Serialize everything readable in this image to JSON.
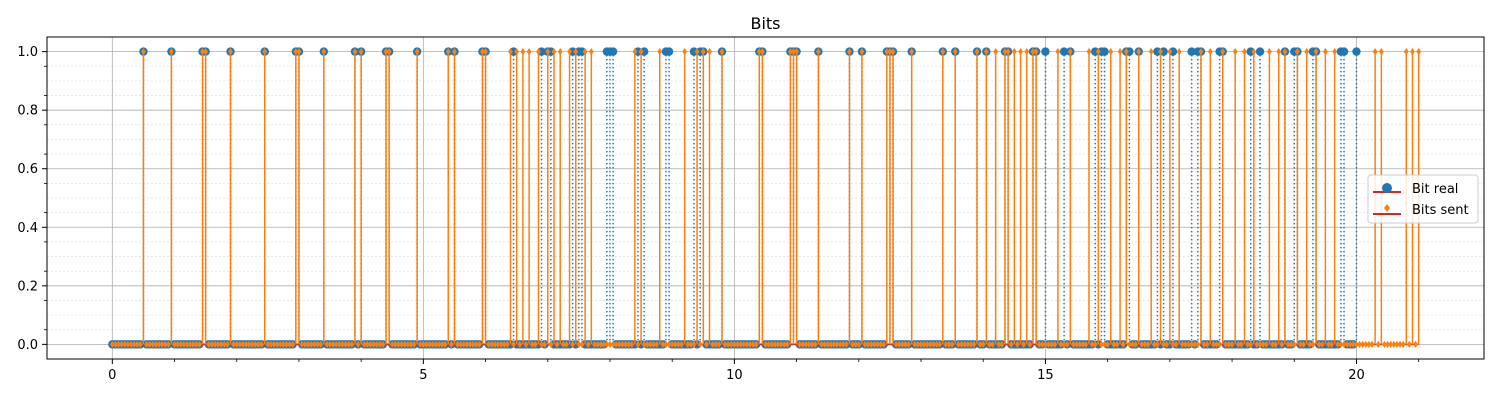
{
  "chart_data": {
    "type": "stem",
    "title": "Bits",
    "xlabel": "",
    "ylabel": "",
    "xlim": [
      -1.05,
      22.05
    ],
    "ylim": [
      -0.05,
      1.05
    ],
    "xticks": [
      0,
      5,
      10,
      15,
      20
    ],
    "xtick_labels": [
      "0",
      "5",
      "10",
      "15",
      "20"
    ],
    "yticks": [
      0.0,
      0.2,
      0.4,
      0.6,
      0.8,
      1.0
    ],
    "ytick_labels": [
      "0.0",
      "0.2",
      "0.4",
      "0.6",
      "0.8",
      "1.0"
    ],
    "grid": true,
    "legend_position": "center-right",
    "series": [
      {
        "name": "Bit real",
        "color": "#1f77b4",
        "marker": "circle",
        "linestyle": "dotted",
        "baseline_color": "#d62728",
        "x_start": 0,
        "x_step": 0.05,
        "ones_x": [
          0.5,
          0.95,
          1.45,
          1.5,
          1.9,
          2.45,
          2.95,
          3.0,
          3.4,
          3.9,
          4.0,
          4.4,
          4.45,
          4.9,
          5.4,
          5.5,
          5.95,
          6.0,
          6.45,
          6.9,
          7.0,
          7.05,
          7.4,
          7.5,
          7.55,
          7.95,
          8.0,
          8.05,
          8.45,
          8.55,
          8.9,
          8.95,
          9.35,
          9.45,
          9.5,
          9.8,
          10.4,
          10.45,
          10.9,
          10.95,
          11.0,
          11.35,
          11.85,
          12.05,
          12.45,
          12.5,
          12.55,
          12.85,
          13.35,
          13.55,
          13.9,
          14.05,
          14.35,
          14.4,
          14.8,
          14.85,
          15.0,
          15.3,
          15.4,
          15.8,
          15.9,
          15.95,
          16.3,
          16.35,
          16.5,
          16.8,
          16.9,
          17.05,
          17.35,
          17.45,
          17.5,
          17.8,
          17.85,
          18.3,
          18.45,
          18.85,
          19.0,
          19.05,
          19.3,
          19.35,
          19.75,
          19.8,
          20.0
        ],
        "x_end": 20.0
      },
      {
        "name": "Bits sent",
        "color": "#ff7f0e",
        "marker": "diamond",
        "linestyle": "solid",
        "baseline_color": "#d62728",
        "x_start": 0,
        "x_step": 0.05,
        "ones_x": [
          0.5,
          0.95,
          1.45,
          1.5,
          1.9,
          2.45,
          2.95,
          3.0,
          3.4,
          3.9,
          4.0,
          4.4,
          4.45,
          4.9,
          5.4,
          5.5,
          5.95,
          6.0,
          6.4,
          6.5,
          6.6,
          6.7,
          6.85,
          7.0,
          7.1,
          7.2,
          7.35,
          7.45,
          7.6,
          7.7,
          8.4,
          8.5,
          8.8,
          9.2,
          9.4,
          9.5,
          9.6,
          9.8,
          10.4,
          10.45,
          10.9,
          10.95,
          11.0,
          11.35,
          11.85,
          12.05,
          12.45,
          12.5,
          12.55,
          12.85,
          13.35,
          13.55,
          13.9,
          14.05,
          14.2,
          14.35,
          14.4,
          14.5,
          14.6,
          14.7,
          14.8,
          14.85,
          15.2,
          15.4,
          15.7,
          15.85,
          16.05,
          16.2,
          16.3,
          16.5,
          16.7,
          16.85,
          17.0,
          17.15,
          17.5,
          17.65,
          17.85,
          18.05,
          18.2,
          18.35,
          18.6,
          18.75,
          18.85,
          19.05,
          19.2,
          19.35,
          19.5,
          19.65,
          20.3,
          20.4,
          20.8,
          20.9,
          21.0
        ],
        "x_end": 21.0
      }
    ]
  }
}
